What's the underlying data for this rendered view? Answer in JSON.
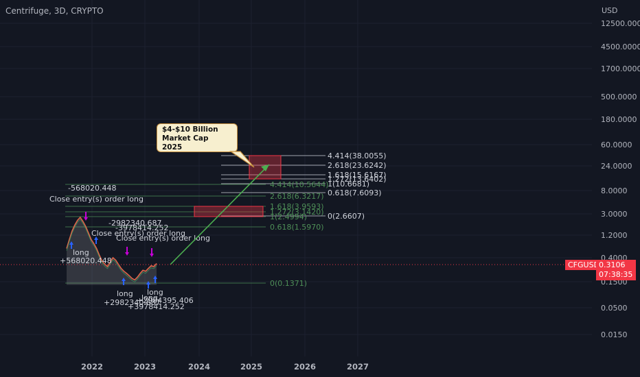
{
  "header": {
    "title": "Centrifuge, 3D, CRYPTO",
    "currency": "USD"
  },
  "price": {
    "symbol": "CFGUSD",
    "last": "0.3106",
    "countdown": "07:38:35",
    "color": "#f23645"
  },
  "callout": {
    "line1": "$4-$10 Billion Market Cap",
    "line2": "2025"
  },
  "chart_data": {
    "type": "line",
    "y_scale": "log",
    "y_tick_labels": [
      "12500.0000",
      "4500.0000",
      "1700.0000",
      "500.0000",
      "180.0000",
      "60.0000",
      "24.0000",
      "8.0000",
      "3.0000",
      "1.2000",
      "0.4000",
      "0.1500",
      "0.0500",
      "0.0150"
    ],
    "x_tick_labels": [
      "2022",
      "2023",
      "2024",
      "2025",
      "2026",
      "2027"
    ],
    "series": [
      {
        "values": [
          0.6,
          0.9,
          1.3,
          1.7,
          2.1,
          2.4,
          2.0,
          1.6,
          1.2,
          0.9,
          0.75,
          0.6,
          0.45,
          0.35,
          0.3,
          0.27,
          0.33,
          0.4,
          0.36,
          0.3,
          0.25,
          0.22,
          0.2,
          0.18,
          0.16,
          0.15,
          0.17,
          0.2,
          0.23,
          0.22,
          0.25,
          0.28,
          0.27,
          0.31
        ]
      }
    ],
    "fib_right": [
      {
        "label": "4.414(38.0055)",
        "value": 38.0055
      },
      {
        "label": "2.618(23.6242)",
        "value": 23.6242
      },
      {
        "label": "1.618(15.6167)",
        "value": 15.6167
      },
      {
        "label": "1.272(13.6402)",
        "value": 13.6402
      },
      {
        "label": "1(10.6681)",
        "value": 10.6681
      },
      {
        "label": "0.618(7.6093)",
        "value": 7.6093
      },
      {
        "label": "0(2.6607)",
        "value": 2.6607
      }
    ],
    "fib_left": [
      {
        "label": "4.414(10.5644)",
        "value": 10.5644
      },
      {
        "label": "2.618(6.3217)",
        "value": 6.3217
      },
      {
        "label": "1.618(3.9593)",
        "value": 3.9593
      },
      {
        "label": "1.272(3.1420)",
        "value": 3.142
      },
      {
        "label": "1(2.4994)",
        "value": 2.4994
      },
      {
        "label": "0.618(1.5970)",
        "value": 1.597
      },
      {
        "label": "0(0.1371)",
        "value": 0.1371
      }
    ],
    "annotations": [
      "-568020.448",
      "Close entry(s) order long",
      "-2982340.687",
      "-3978414.252",
      "Close entry(s) order long",
      "Close entry(s) order long",
      "long",
      "+568020.448",
      "long",
      "+2982340.687",
      "long",
      "long",
      "+2984395.406",
      "+3978414.252"
    ]
  }
}
